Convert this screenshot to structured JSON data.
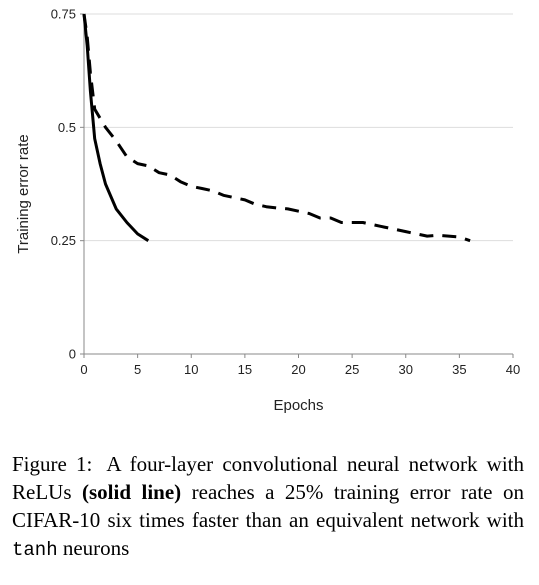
{
  "chart_data": {
    "type": "line",
    "xlabel": "Epochs",
    "ylabel": "Training error rate",
    "xlim": [
      0,
      40
    ],
    "ylim": [
      0,
      0.75
    ],
    "xticks": [
      0,
      5,
      10,
      15,
      20,
      25,
      30,
      35,
      40
    ],
    "yticks": [
      0,
      0.25,
      0.5,
      0.75
    ],
    "ytick_labels": [
      "0",
      "0.25",
      "0.5",
      "0.75"
    ],
    "grid": "horizontal",
    "series": [
      {
        "style": "solid",
        "color": "#000000",
        "x": [
          0,
          0.3,
          0.6,
          1,
          1.5,
          2,
          3,
          4,
          5,
          6
        ],
        "y": [
          0.75,
          0.68,
          0.58,
          0.475,
          0.42,
          0.375,
          0.32,
          0.29,
          0.265,
          0.25
        ]
      },
      {
        "style": "dashed",
        "color": "#000000",
        "x": [
          0,
          0.3,
          0.6,
          1,
          2,
          3,
          4,
          5,
          6,
          7,
          8,
          9,
          10,
          11,
          12,
          13,
          14,
          15,
          16,
          17,
          18,
          19,
          20,
          21,
          22,
          23,
          24,
          25,
          26,
          27,
          28,
          29,
          30,
          31,
          32,
          33,
          34,
          35,
          36
        ],
        "y": [
          0.75,
          0.7,
          0.62,
          0.54,
          0.5,
          0.47,
          0.435,
          0.42,
          0.415,
          0.4,
          0.395,
          0.38,
          0.37,
          0.365,
          0.36,
          0.35,
          0.345,
          0.34,
          0.33,
          0.325,
          0.322,
          0.32,
          0.315,
          0.31,
          0.3,
          0.3,
          0.29,
          0.29,
          0.29,
          0.285,
          0.28,
          0.275,
          0.27,
          0.265,
          0.26,
          0.262,
          0.26,
          0.258,
          0.25
        ]
      }
    ]
  },
  "caption": {
    "label": "Figure 1:",
    "text_before_bold": "A four-layer convolutional neural network with ReLUs ",
    "bold": "(solid line)",
    "text_after_bold": " reaches a 25% training error rate on CIFAR-10 six times faster than an equivalent network with ",
    "code": "tanh",
    "text_end": " neurons"
  }
}
